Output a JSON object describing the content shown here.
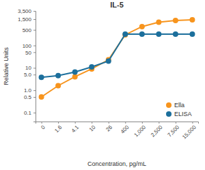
{
  "chart_data": {
    "type": "line",
    "title": "IL-5",
    "x_label": "Concentration, pg/mL",
    "y_label": "Relative Units",
    "categories": [
      "0",
      "1.6",
      "4.1",
      "10",
      "26",
      "400",
      "1,000",
      "2,500",
      "7,500",
      "15,000"
    ],
    "series": [
      {
        "name": "Ella",
        "color": "#f7941d",
        "marker": "circle",
        "values": [
          0.5,
          1.6,
          4,
          9,
          23,
          300,
          700,
          1100,
          1300,
          1400
        ]
      },
      {
        "name": "ELISA",
        "color": "#1c6f9c",
        "marker": "circle",
        "values": [
          3.8,
          4.5,
          6.5,
          11,
          20,
          320,
          320,
          320,
          320,
          320
        ]
      }
    ],
    "log": "y",
    "ylim": [
      0.04,
      3500
    ],
    "yticks": [
      0.1,
      0.5,
      {
        "value": 1,
        "label": "1.0"
      },
      {
        "value": 5,
        "label": "5.0"
      },
      10,
      50,
      100,
      500,
      {
        "value": 1500,
        "label": "1,500"
      },
      {
        "value": 3500,
        "label": "3,500"
      }
    ],
    "grid": false,
    "legend": "lower right"
  }
}
